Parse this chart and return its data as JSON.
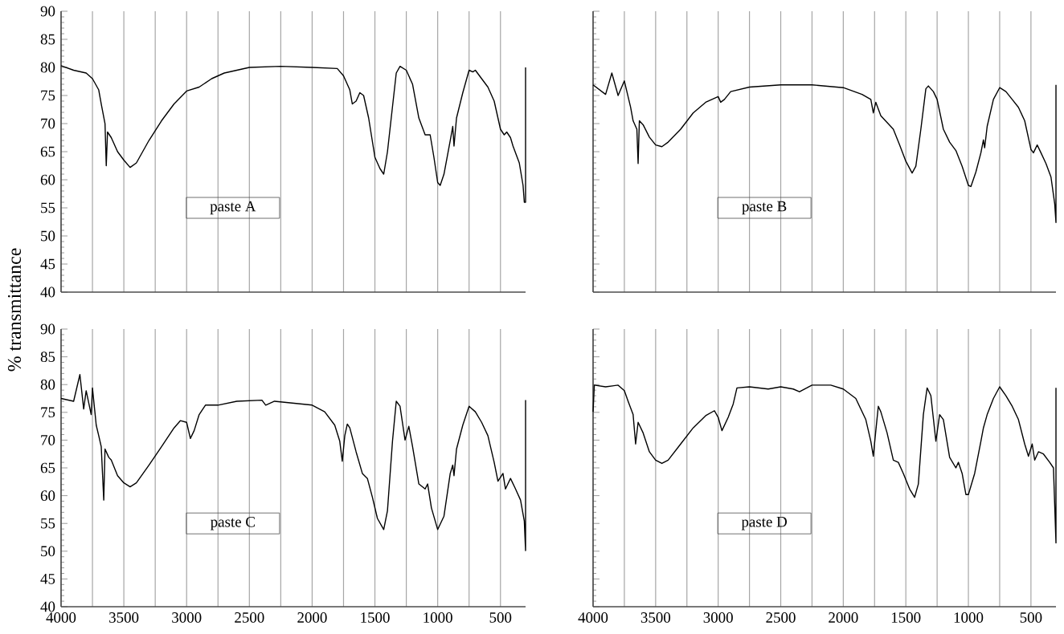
{
  "chart_data": [
    {
      "type": "line",
      "ylabel": "% transmittance",
      "annotations": [
        "paste A"
      ],
      "xlim": [
        4000,
        300
      ],
      "ylim": [
        40,
        90
      ],
      "xticks": [
        4000,
        {
          "value": 3750,
          "label": null
        },
        3500,
        {
          "value": 3250,
          "label": null
        },
        3000,
        {
          "value": 2750,
          "label": null
        },
        2500,
        {
          "value": 2250,
          "label": null
        },
        2000,
        {
          "value": 1750,
          "label": null
        },
        1500,
        {
          "value": 1250,
          "label": null
        },
        1000,
        {
          "value": 750,
          "label": null
        },
        500
      ],
      "yticks": [
        40,
        45,
        50,
        55,
        60,
        65,
        70,
        75,
        80,
        85,
        90
      ],
      "grid": "x",
      "tick_labels": "y",
      "marker": "none",
      "color": "#000000",
      "x": [
        4000,
        3900,
        3800,
        3750,
        3700,
        3680,
        3650,
        3640,
        3630,
        3600,
        3550,
        3500,
        3450,
        3400,
        3300,
        3200,
        3100,
        3000,
        2900,
        2800,
        2700,
        2600,
        2500,
        2250,
        2000,
        1800,
        1750,
        1700,
        1680,
        1650,
        1620,
        1590,
        1550,
        1500,
        1460,
        1430,
        1400,
        1360,
        1330,
        1300,
        1250,
        1200,
        1150,
        1100,
        1060,
        1030,
        1000,
        980,
        950,
        900,
        880,
        870,
        850,
        800,
        750,
        720,
        700,
        650,
        600,
        550,
        500,
        470,
        450,
        420,
        400,
        350,
        320,
        310,
        300,
        300
      ],
      "values": [
        80.3,
        79.5,
        79,
        78,
        76,
        73.5,
        70,
        62.5,
        68.5,
        67.5,
        65,
        63.5,
        62.2,
        63,
        67,
        70.5,
        73.5,
        75.8,
        76.5,
        78,
        79,
        79.5,
        80,
        80.2,
        80,
        79.8,
        78.5,
        76,
        73.5,
        74,
        75.5,
        75,
        71,
        64,
        62,
        61,
        65,
        73,
        79,
        80.2,
        79.5,
        77,
        71,
        68,
        68,
        64,
        59.5,
        59,
        61,
        67,
        69.5,
        66,
        71,
        75.5,
        79.5,
        79.2,
        79.5,
        78,
        76.5,
        74,
        69,
        68,
        68.5,
        67.5,
        66,
        63,
        59,
        56,
        56,
        80
      ]
    },
    {
      "type": "line",
      "annotations": [
        "paste B"
      ],
      "xlim": [
        4000,
        300
      ],
      "ylim": [
        40,
        90
      ],
      "xticks": [
        4000,
        {
          "value": 3750,
          "label": null
        },
        3500,
        {
          "value": 3250,
          "label": null
        },
        3000,
        {
          "value": 2750,
          "label": null
        },
        2500,
        {
          "value": 2250,
          "label": null
        },
        2000,
        {
          "value": 1750,
          "label": null
        },
        1500,
        {
          "value": 1250,
          "label": null
        },
        1000,
        {
          "value": 750,
          "label": null
        },
        500
      ],
      "yticks": [
        40,
        45,
        50,
        55,
        60,
        65,
        70,
        75,
        80,
        85,
        90
      ],
      "grid": "x",
      "tick_labels": false,
      "marker": "none",
      "color": "#000000",
      "x": [
        4000,
        3900,
        3850,
        3800,
        3750,
        3700,
        3680,
        3650,
        3640,
        3630,
        3600,
        3550,
        3500,
        3450,
        3400,
        3300,
        3200,
        3100,
        3000,
        2980,
        2950,
        2900,
        2750,
        2500,
        2250,
        2000,
        1850,
        1780,
        1760,
        1740,
        1700,
        1600,
        1550,
        1500,
        1450,
        1420,
        1380,
        1340,
        1320,
        1280,
        1250,
        1200,
        1150,
        1100,
        1050,
        1000,
        980,
        940,
        900,
        880,
        870,
        850,
        800,
        750,
        700,
        650,
        600,
        550,
        500,
        480,
        450,
        420,
        380,
        340,
        310,
        300,
        300
      ],
      "values": [
        76.9,
        75.2,
        79,
        75,
        77.6,
        72.9,
        70.5,
        69,
        62.9,
        70.5,
        69.8,
        67.6,
        66.2,
        65.9,
        66.7,
        69,
        71.9,
        73.8,
        74.8,
        73.8,
        74.3,
        75.7,
        76.5,
        76.9,
        76.9,
        76.4,
        75.2,
        74.3,
        71.9,
        73.8,
        71.4,
        69,
        66.2,
        63.3,
        61.2,
        62.4,
        69,
        76.2,
        76.7,
        75.7,
        74.3,
        69,
        66.7,
        65.2,
        62.4,
        59,
        58.8,
        61.4,
        64.8,
        67.1,
        65.7,
        69.5,
        74.3,
        76.4,
        75.7,
        74.3,
        72.9,
        70.5,
        65.4,
        64.8,
        66.2,
        64.8,
        62.9,
        60.5,
        55.7,
        52.4,
        76.9
      ]
    },
    {
      "type": "line",
      "annotations": [
        "paste C"
      ],
      "xlim": [
        4000,
        300
      ],
      "ylim": [
        40,
        90
      ],
      "xticks": [
        4000,
        {
          "value": 3750,
          "label": null
        },
        3500,
        {
          "value": 3250,
          "label": null
        },
        3000,
        {
          "value": 2750,
          "label": null
        },
        2500,
        {
          "value": 2250,
          "label": null
        },
        2000,
        {
          "value": 1750,
          "label": null
        },
        1500,
        {
          "value": 1250,
          "label": null
        },
        1000,
        {
          "value": 750,
          "label": null
        },
        500
      ],
      "yticks": [
        40,
        45,
        50,
        55,
        60,
        65,
        70,
        75,
        80,
        85,
        90
      ],
      "grid": "x",
      "marker": "none",
      "color": "#000000",
      "x": [
        4000,
        3900,
        3850,
        3820,
        3800,
        3760,
        3750,
        3720,
        3700,
        3680,
        3660,
        3650,
        3620,
        3600,
        3550,
        3500,
        3450,
        3400,
        3300,
        3200,
        3100,
        3050,
        3000,
        2970,
        2940,
        2900,
        2850,
        2750,
        2600,
        2400,
        2370,
        2300,
        2000,
        1900,
        1820,
        1780,
        1760,
        1740,
        1720,
        1700,
        1650,
        1600,
        1560,
        1520,
        1480,
        1430,
        1400,
        1360,
        1330,
        1300,
        1260,
        1230,
        1200,
        1150,
        1100,
        1080,
        1050,
        1000,
        950,
        900,
        880,
        870,
        850,
        800,
        750,
        700,
        650,
        600,
        550,
        520,
        480,
        460,
        420,
        380,
        340,
        310,
        300,
        300
      ],
      "values": [
        77.5,
        77,
        81.8,
        75.6,
        78.9,
        74.6,
        79.4,
        72.7,
        70.8,
        68.8,
        59.2,
        68.4,
        66.9,
        66.4,
        63.6,
        62.3,
        61.6,
        62.3,
        65.5,
        68.8,
        72.2,
        73.5,
        73.2,
        70.3,
        71.7,
        74.6,
        76.3,
        76.3,
        77,
        77.2,
        76.3,
        77,
        76.3,
        75.1,
        72.7,
        69.8,
        66.2,
        70.8,
        72.9,
        72.2,
        67.9,
        64,
        63.1,
        59.7,
        55.9,
        53.9,
        57.3,
        69.8,
        77,
        76.1,
        70,
        72.5,
        68.8,
        62.1,
        61.2,
        62.1,
        57.8,
        53.9,
        56.3,
        64,
        65.5,
        63.6,
        68.4,
        72.7,
        76.1,
        75.1,
        73.2,
        70.8,
        66,
        62.6,
        64,
        61.2,
        63.1,
        61.2,
        59.2,
        55.4,
        50.1,
        77.2
      ]
    },
    {
      "type": "line",
      "annotations": [
        "paste D"
      ],
      "xlim": [
        4000,
        300
      ],
      "ylim": [
        40,
        90
      ],
      "xticks": [
        4000,
        {
          "value": 3750,
          "label": null
        },
        3500,
        {
          "value": 3250,
          "label": null
        },
        3000,
        {
          "value": 2750,
          "label": null
        },
        2500,
        {
          "value": 2250,
          "label": null
        },
        2000,
        {
          "value": 1750,
          "label": null
        },
        1500,
        {
          "value": 1250,
          "label": null
        },
        1000,
        {
          "value": 750,
          "label": null
        },
        500
      ],
      "yticks": [
        40,
        45,
        50,
        55,
        60,
        65,
        70,
        75,
        80,
        85,
        90
      ],
      "grid": "x",
      "tick_labels": "x",
      "marker": "none",
      "color": "#000000",
      "x": [
        4000,
        3990,
        3900,
        3800,
        3750,
        3720,
        3680,
        3660,
        3640,
        3600,
        3550,
        3500,
        3450,
        3400,
        3300,
        3200,
        3100,
        3030,
        3000,
        2970,
        2920,
        2880,
        2850,
        2750,
        2600,
        2500,
        2400,
        2350,
        2250,
        2100,
        2000,
        1900,
        1820,
        1780,
        1760,
        1740,
        1720,
        1700,
        1650,
        1600,
        1560,
        1520,
        1470,
        1430,
        1400,
        1360,
        1330,
        1300,
        1260,
        1230,
        1200,
        1150,
        1100,
        1080,
        1050,
        1020,
        1000,
        950,
        900,
        880,
        850,
        800,
        750,
        700,
        650,
        600,
        550,
        520,
        490,
        470,
        440,
        400,
        350,
        320,
        300,
        300
      ],
      "values": [
        75.1,
        79.9,
        79.6,
        79.9,
        78.9,
        77,
        74.6,
        69.3,
        73.2,
        71.3,
        67.9,
        66.4,
        65.8,
        66.4,
        69.3,
        72.2,
        74.4,
        75.3,
        74.1,
        71.7,
        74.1,
        76.5,
        79.4,
        79.6,
        79.2,
        79.6,
        79.2,
        78.7,
        79.9,
        79.9,
        79.2,
        77.5,
        73.7,
        69.8,
        67.1,
        71.7,
        76.1,
        75.1,
        71.3,
        66.4,
        66,
        64,
        61.2,
        59.7,
        62.1,
        74.6,
        79.4,
        78,
        69.8,
        74.6,
        73.7,
        66.9,
        65,
        66,
        64,
        60.2,
        60.2,
        64,
        69.8,
        72.2,
        74.6,
        77.5,
        79.6,
        78,
        76.1,
        73.7,
        69.3,
        67.1,
        69.3,
        66.4,
        67.9,
        67.5,
        66,
        65,
        51.5,
        79.4
      ]
    }
  ]
}
